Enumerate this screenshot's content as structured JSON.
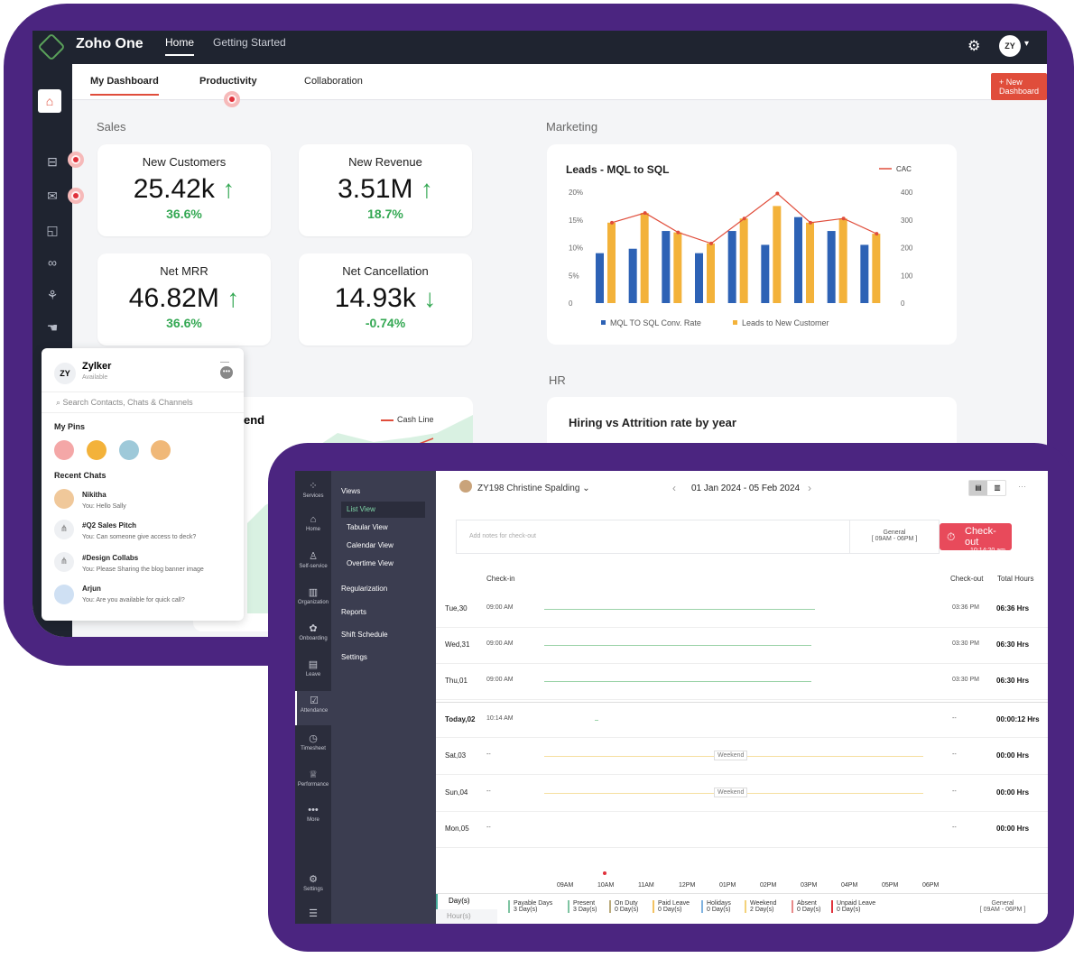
{
  "topbar": {
    "app_name": "Zoho One",
    "nav": [
      "Home",
      "Getting Started"
    ],
    "avatar": "ZY"
  },
  "tabs": [
    "My Dashboard",
    "Productivity",
    "Collaboration"
  ],
  "new_dashboard": "+ New Dashboard",
  "sections": {
    "sales": "Sales",
    "marketing": "Marketing",
    "hr": "HR"
  },
  "kpis": [
    {
      "title": "New Customers",
      "value": "25.42k",
      "change": "36.6%",
      "trend": "up"
    },
    {
      "title": "New Revenue",
      "value": "3.51M",
      "change": "18.7%",
      "trend": "up"
    },
    {
      "title": "Net MRR",
      "value": "46.82M",
      "change": "36.6%",
      "trend": "up"
    },
    {
      "title": "Net Cancellation",
      "value": "14.93k",
      "change": "-0.74%",
      "trend": "down"
    }
  ],
  "chart_data": {
    "type": "bar",
    "title": "Leads - MQL to SQL",
    "left_ticks": [
      "20%",
      "15%",
      "10%",
      "5%",
      "0"
    ],
    "right_ticks": [
      "400",
      "300",
      "200",
      "100",
      "0"
    ],
    "ylim": [
      0,
      20
    ],
    "y2lim": [
      0,
      400
    ],
    "series": [
      {
        "name": "MQL TO SQL Conv. Rate",
        "color": "#2d62b5",
        "values": [
          9,
          9.8,
          13,
          9,
          13,
          10.5,
          15.5,
          13,
          10.5
        ]
      },
      {
        "name": "Leads to New Customer",
        "color": "#f3b23a",
        "values": [
          290,
          325,
          255,
          215,
          305,
          350,
          290,
          305,
          250
        ]
      },
      {
        "name": "CAC",
        "color": "#e04d3b",
        "type": "line",
        "values": [
          290,
          325,
          255,
          215,
          305,
          395,
          290,
          305,
          250
        ]
      }
    ]
  },
  "cash_line": {
    "partial_title": "end",
    "legend": "Cash Line"
  },
  "hr_chart_title": "Hiring vs Attrition rate by year",
  "chat": {
    "user": "Zylker",
    "status": "Available",
    "avatar": "ZY",
    "search_placeholder": "Search Contacts, Chats & Channels",
    "pins_heading": "My Pins",
    "recent_heading": "Recent Chats",
    "chats": [
      {
        "name": "Nikitha",
        "msg": "You: Hello Sally"
      },
      {
        "name": "#Q2 Sales Pitch",
        "msg": "You: Can someone give access to deck?"
      },
      {
        "name": "#Design Collabs",
        "msg": "You: Please Sharing the blog banner image"
      },
      {
        "name": "Arjun",
        "msg": "You: Are you available for quick call?"
      }
    ]
  },
  "people": {
    "nav": [
      "Services",
      "Home",
      "Self-service",
      "Organization",
      "Onboarding",
      "Leave",
      "Attendance",
      "Timesheet",
      "Performance",
      "More",
      "Settings"
    ],
    "submenu": [
      "Views",
      "List View",
      "Tabular View",
      "Calendar View",
      "Overtime View",
      "Regularization",
      "Reports",
      "Shift Schedule",
      "Settings"
    ],
    "employee": "ZY198 Christine Spalding",
    "date_range": "01 Jan 2024 - 05 Feb 2024",
    "notes_placeholder": "Add notes for check-out",
    "shift_name": "General",
    "shift_time": "[ 09AM - 06PM ]",
    "checkout_label": "Check-out",
    "checkout_time": "10:14:20 am",
    "headers": {
      "checkin": "Check-in",
      "checkout": "Check-out",
      "total": "Total Hours"
    },
    "rows": [
      {
        "day": "Tue,30",
        "in": "09:00 AM",
        "out": "03:36 PM",
        "total": "06:36 Hrs"
      },
      {
        "day": "Wed,31",
        "in": "09:00 AM",
        "out": "03:30 PM",
        "total": "06:30 Hrs"
      },
      {
        "day": "Thu,01",
        "in": "09:00 AM",
        "out": "03:30 PM",
        "total": "06:30 Hrs"
      },
      {
        "day": "Today,02",
        "in": "10:14 AM",
        "out": "--",
        "total": "00:00:12 Hrs"
      },
      {
        "day": "Sat,03",
        "in": "--",
        "out": "--",
        "total": "00:00 Hrs",
        "note": "Weekend"
      },
      {
        "day": "Sun,04",
        "in": "--",
        "out": "--",
        "total": "00:00 Hrs",
        "note": "Weekend"
      },
      {
        "day": "Mon,05",
        "in": "--",
        "out": "--",
        "total": "00:00 Hrs"
      }
    ],
    "timeline": [
      "09AM",
      "10AM",
      "11AM",
      "12PM",
      "01PM",
      "02PM",
      "03PM",
      "04PM",
      "05PM",
      "06PM"
    ],
    "footer_tabs": [
      "Day(s)",
      "Hour(s)"
    ],
    "summary": [
      {
        "label": "Payable Days",
        "value": "3 Day(s)",
        "color": "#7fc4a2"
      },
      {
        "label": "Present",
        "value": "3 Day(s)",
        "color": "#7fc4a2"
      },
      {
        "label": "On Duty",
        "value": "0 Day(s)",
        "color": "#b9a97a"
      },
      {
        "label": "Paid Leave",
        "value": "0 Day(s)",
        "color": "#f3c262"
      },
      {
        "label": "Holidays",
        "value": "0 Day(s)",
        "color": "#7fb2e0"
      },
      {
        "label": "Weekend",
        "value": "2 Day(s)",
        "color": "#f3d27a"
      },
      {
        "label": "Absent",
        "value": "0 Day(s)",
        "color": "#e88a8a"
      },
      {
        "label": "Unpaid Leave",
        "value": "0 Day(s)",
        "color": "#e0313b"
      }
    ],
    "footer_shift": "General",
    "footer_shift_time": "[ 09AM - 06PM ]"
  }
}
